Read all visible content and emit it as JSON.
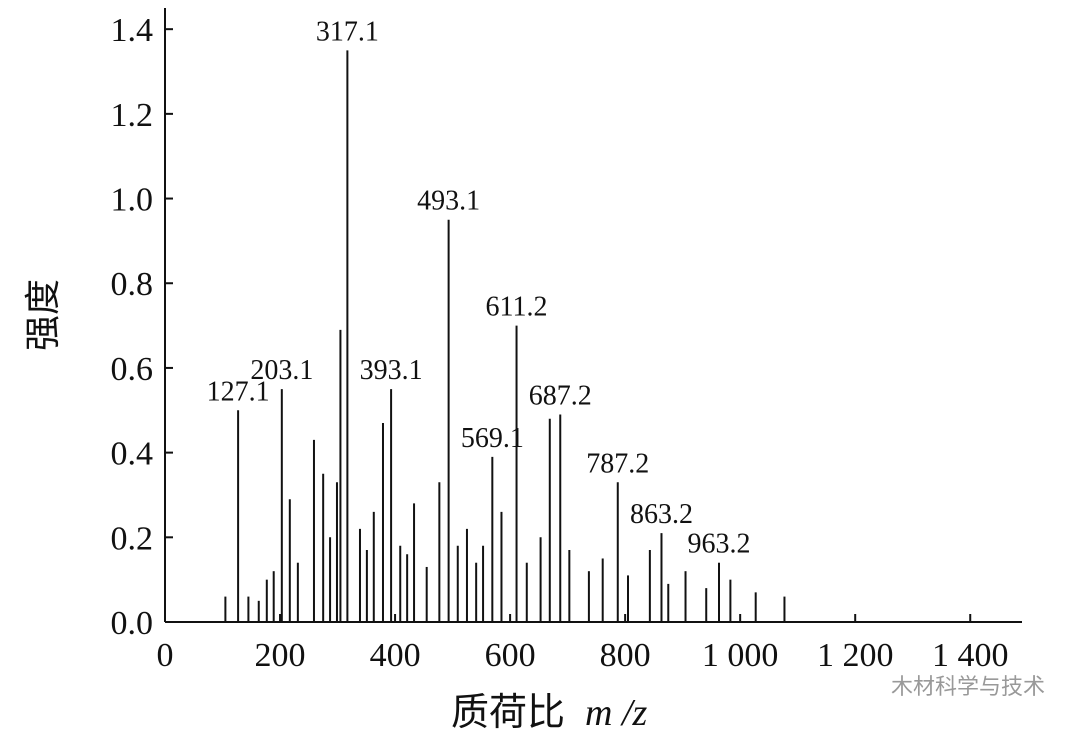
{
  "chart_data": {
    "type": "spectrum",
    "xlabel": "质荷比",
    "xlabel_unit": "m /z",
    "ylabel": "强度",
    "watermark": "木材科学与技术",
    "color": "#111111",
    "xlim": [
      0,
      1490
    ],
    "ylim": [
      0,
      1.45
    ],
    "xticks": [
      0,
      200,
      400,
      600,
      800,
      {
        "value": 1000,
        "label": "1 000"
      },
      {
        "value": 1200,
        "label": "1 200"
      },
      {
        "value": 1400,
        "label": "1 400"
      }
    ],
    "yticks": [
      {
        "value": 0,
        "label": "0.0"
      },
      0.2,
      0.4,
      0.6,
      0.8,
      {
        "value": 1,
        "label": "1.0"
      },
      1.2,
      1.4
    ],
    "peaks": {
      "x": [
        127.1,
        203.1,
        317.1,
        393.1,
        493.1,
        569.1,
        611.2,
        687.2,
        787.2,
        863.2,
        963.2
      ],
      "values": [
        0.5,
        0.55,
        1.35,
        0.55,
        0.95,
        0.39,
        0.7,
        0.49,
        0.33,
        0.21,
        0.14
      ]
    },
    "minor_peaks": {
      "x": [
        105,
        145,
        163,
        177,
        189,
        217,
        231,
        259,
        275,
        287,
        299,
        305,
        339,
        351,
        363,
        379,
        409,
        421,
        433,
        455,
        477,
        509,
        525,
        541,
        553,
        585,
        629,
        653,
        669,
        703,
        737,
        761,
        805,
        843,
        875,
        905,
        941,
        983,
        1027,
        1077
      ],
      "values": [
        0.06,
        0.06,
        0.05,
        0.1,
        0.12,
        0.29,
        0.14,
        0.43,
        0.35,
        0.2,
        0.33,
        0.69,
        0.22,
        0.17,
        0.26,
        0.47,
        0.18,
        0.16,
        0.28,
        0.13,
        0.33,
        0.18,
        0.22,
        0.14,
        0.18,
        0.26,
        0.14,
        0.2,
        0.48,
        0.17,
        0.12,
        0.15,
        0.11,
        0.17,
        0.09,
        0.12,
        0.08,
        0.1,
        0.07,
        0.06
      ]
    }
  }
}
